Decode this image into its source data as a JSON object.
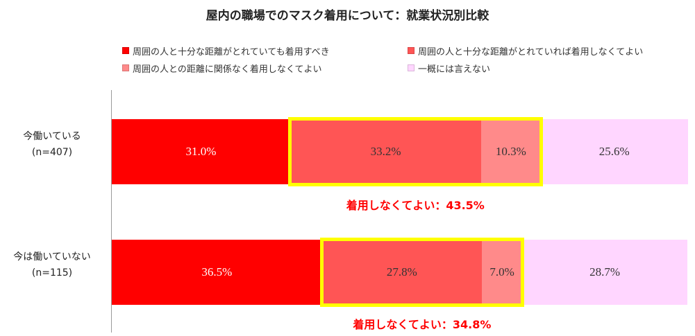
{
  "chart_data": {
    "type": "bar",
    "orientation": "horizontal",
    "stacked": "percent",
    "title": "屋内の職場でのマスク着用について：就業状況別比較",
    "categories": [
      "今働いている",
      "今は働いていない"
    ],
    "category_notes": [
      "(n=407)",
      "(n=115)"
    ],
    "series": [
      {
        "name": "周囲の人と十分な距離がとれていても着用すべき",
        "color": "#ff0000",
        "values": [
          31.0,
          36.5
        ],
        "labels": [
          "31.0%",
          "36.5%"
        ]
      },
      {
        "name": "周囲の人と十分な距離がとれていれば着用しなくてよい",
        "color": "#ff5555",
        "values": [
          33.2,
          27.8
        ],
        "labels": [
          "33.2%",
          "27.8%"
        ]
      },
      {
        "name": "周囲の人との距離に関係なく着用しなくてよい",
        "color": "#ff8a8a",
        "values": [
          10.3,
          7.0
        ],
        "labels": [
          "10.3%",
          "7.0%"
        ]
      },
      {
        "name": "一概には言えない",
        "color": "#ffd6ff",
        "values": [
          25.6,
          28.7
        ],
        "labels": [
          "25.6%",
          "28.7%"
        ]
      }
    ],
    "label_colors": [
      "#ffffff",
      "#333333",
      "#333333",
      "#333333"
    ],
    "highlight_series": [
      1,
      2
    ],
    "highlight_color": "#ffff00",
    "annotations": [
      "着用しなくてよい：43.5%",
      "着用しなくてよい：34.8%"
    ],
    "legend": "top",
    "xlim": [
      0,
      100
    ],
    "grid": false
  }
}
